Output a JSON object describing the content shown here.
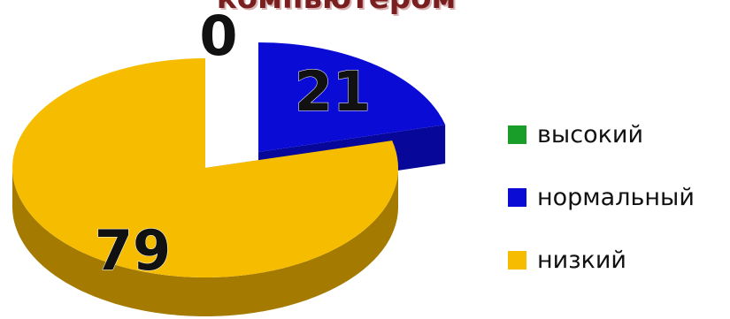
{
  "chart_data": {
    "type": "pie",
    "title": "компьютером",
    "categories": [
      "высокий",
      "нормальный",
      "низкий"
    ],
    "values": [
      0,
      21,
      79
    ],
    "colors": [
      "#1a9e2a",
      "#0b0bd6",
      "#f6bd00"
    ],
    "side_colors": [
      "#0e6b18",
      "#07079a",
      "#a47a00"
    ],
    "data_labels": [
      "0",
      "21",
      "79"
    ],
    "legend_position": "right",
    "style": "3d-exploded"
  }
}
